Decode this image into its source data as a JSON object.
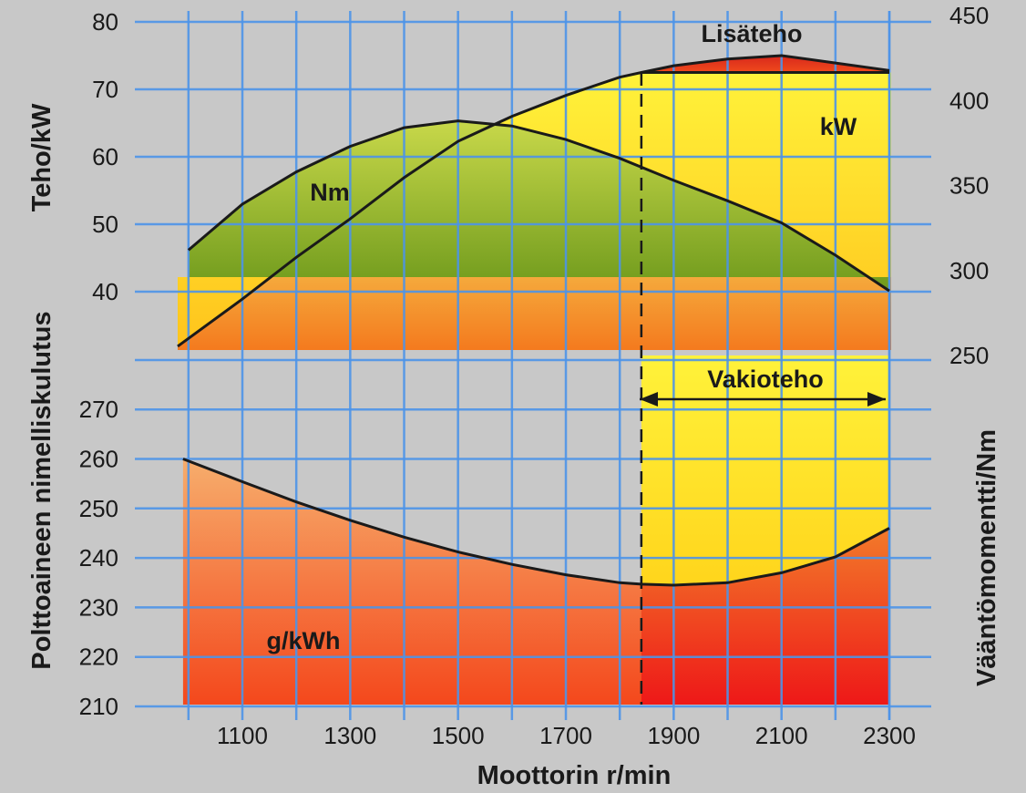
{
  "chart_data": {
    "type": "line",
    "xlabel": "Moottorin r/min",
    "x_ticks": [
      1100,
      1300,
      1500,
      1700,
      1900,
      2100,
      2300
    ],
    "xlim": [
      980,
      2300
    ],
    "left_top_axis": {
      "label": "Teho/kW",
      "ticks": [
        40,
        50,
        60,
        70,
        80
      ],
      "range": [
        30,
        80
      ]
    },
    "left_bottom_axis": {
      "label": "Polttoaineen nimelliskulutus",
      "ticks": [
        210,
        220,
        230,
        240,
        250,
        260,
        270
      ],
      "range": [
        210,
        277
      ]
    },
    "right_axis": {
      "label": "Vääntömomentti/Nm",
      "ticks": [
        250,
        300,
        350,
        400,
        450
      ],
      "range": [
        250,
        450
      ]
    },
    "series": [
      {
        "name": "kW",
        "axis": "left_top",
        "x": [
          980,
          1100,
          1200,
          1300,
          1400,
          1500,
          1600,
          1700,
          1800,
          1840,
          1900,
          2000,
          2100,
          2200,
          2300
        ],
        "values": [
          31.9,
          38.9,
          45.1,
          50.8,
          56.9,
          62.3,
          66.0,
          69.1,
          71.8,
          72.5,
          72.5,
          72.5,
          72.5,
          72.5,
          72.5
        ]
      },
      {
        "name": "Lisäteho",
        "axis": "left_top",
        "x": [
          1840,
          1900,
          2000,
          2100,
          2200,
          2300
        ],
        "values": [
          72.5,
          73.5,
          74.5,
          75.0,
          73.9,
          72.8
        ]
      },
      {
        "name": "Nm",
        "axis": "right",
        "x": [
          1000,
          1100,
          1200,
          1300,
          1400,
          1500,
          1600,
          1700,
          1800,
          1900,
          2000,
          2100,
          2200,
          2300
        ],
        "values": [
          312,
          339,
          358,
          373,
          384,
          388,
          385,
          377,
          366,
          353,
          341,
          328,
          309,
          288
        ]
      },
      {
        "name": "g/kWh",
        "axis": "left_bottom",
        "x": [
          990,
          1100,
          1200,
          1300,
          1400,
          1500,
          1600,
          1700,
          1800,
          1840,
          1900,
          2000,
          2100,
          2200,
          2300
        ],
        "values": [
          260,
          255.4,
          251.3,
          247.6,
          244.2,
          241.2,
          238.7,
          236.6,
          235.0,
          234.7,
          234.5,
          235.0,
          237.0,
          240.2,
          246.0
        ]
      }
    ],
    "annotations": [
      {
        "text": "Lisäteho",
        "target": "Lisäteho"
      },
      {
        "text": "kW",
        "target": "kW"
      },
      {
        "text": "Nm",
        "target": "Nm"
      },
      {
        "text": "g/kWh",
        "target": "g/kWh"
      },
      {
        "text": "Vakioteho",
        "x_range": [
          1840,
          2300
        ]
      }
    ],
    "constant_power_start_rpm": 1840,
    "grid": true,
    "colors": {
      "background": "#c8c8c8",
      "grid": "#4d94e8",
      "torque_fill_top": "#c8d84a",
      "torque_fill_bottom": "#6f9a1c",
      "power_fill_top": "#fff23a",
      "power_fill_bottom": "#ffc41c",
      "extra_power_fill": "#e82c1c",
      "band_fill_top": "#f5a93c",
      "band_fill_bottom": "#f47a1e",
      "fuel_fill_top": "#f6ad6c",
      "fuel_fill_bottom": "#f4481c",
      "fuel_fill_right_bottom": "#ee1818",
      "line": "#1a1a1a"
    }
  }
}
